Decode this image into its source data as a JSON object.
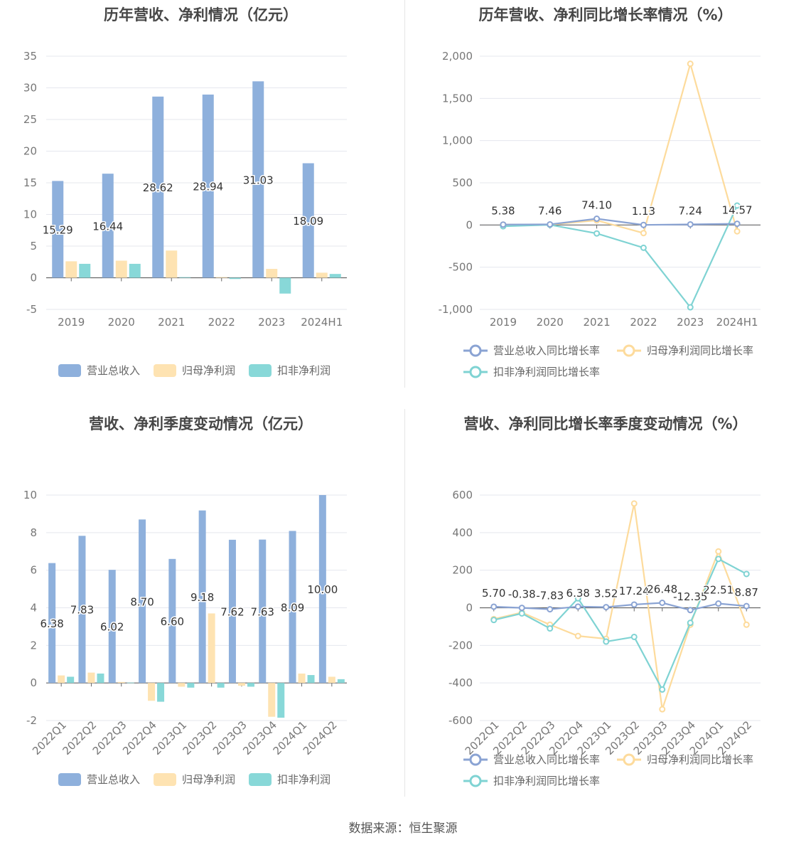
{
  "source_text": "数据来源：恒生聚源",
  "colors": {
    "revenue": "#8eb0dc",
    "net_profit": "#fee3b2",
    "deducted": "#88d8d8",
    "revenue_line": "#8aa3d3",
    "net_profit_line": "#fddb9c",
    "deducted_line": "#7fd3d3",
    "grid": "#e5e7ee",
    "axis_text": "#777777",
    "label_text": "#333333"
  },
  "legend_bar": [
    "营业总收入",
    "归母净利润",
    "扣非净利润"
  ],
  "legend_line": [
    "营业总收入同比增长率",
    "归母净利润同比增长率",
    "扣非净利润同比增长率"
  ],
  "chart_data": [
    {
      "type": "bar",
      "title": "历年营收、净利情况（亿元）",
      "categories": [
        "2019",
        "2020",
        "2021",
        "2022",
        "2023",
        "2024H1"
      ],
      "series": [
        {
          "name": "营业总收入",
          "values": [
            15.29,
            16.44,
            28.62,
            28.94,
            31.03,
            18.09
          ]
        },
        {
          "name": "归母净利润",
          "values": [
            2.6,
            2.7,
            4.3,
            0.1,
            1.4,
            0.8
          ]
        },
        {
          "name": "扣非净利润",
          "values": [
            2.2,
            2.2,
            0.1,
            -0.2,
            -2.5,
            0.6
          ]
        }
      ],
      "data_labels": [
        "15.29",
        "16.44",
        "28.62",
        "28.94",
        "31.03",
        "18.09"
      ],
      "ylim": [
        -5,
        35
      ],
      "yticks": [
        "-5",
        "0",
        "5",
        "10",
        "15",
        "20",
        "25",
        "30",
        "35"
      ],
      "grid": true,
      "legend_position": "bottom"
    },
    {
      "type": "line",
      "title": "历年营收、净利同比增长率情况（%）",
      "categories": [
        "2019",
        "2020",
        "2021",
        "2022",
        "2023",
        "2024H1"
      ],
      "series": [
        {
          "name": "营业总收入同比增长率",
          "values": [
            5.38,
            7.46,
            74.1,
            1.13,
            7.24,
            14.57
          ]
        },
        {
          "name": "归母净利润同比增长率",
          "values": [
            5,
            5,
            55,
            -96,
            1910,
            -75
          ]
        },
        {
          "name": "扣非净利润同比增长率",
          "values": [
            -15,
            2,
            -100,
            -270,
            -975,
            230
          ]
        }
      ],
      "data_labels": [
        "5.38",
        "7.46",
        "74.10",
        "1.13",
        "7.24",
        "14.57"
      ],
      "ylim": [
        -1000,
        2000
      ],
      "yticks": [
        "-1,000",
        "-500",
        "0",
        "500",
        "1,000",
        "1,500",
        "2,000"
      ],
      "grid": true,
      "legend_position": "bottom"
    },
    {
      "type": "bar",
      "title": "营收、净利季度变动情况（亿元）",
      "categories": [
        "2022Q1",
        "2022Q2",
        "2022Q3",
        "2022Q4",
        "2023Q1",
        "2023Q2",
        "2023Q3",
        "2023Q4",
        "2024Q1",
        "2024Q2"
      ],
      "series": [
        {
          "name": "营业总收入",
          "values": [
            6.38,
            7.83,
            6.02,
            8.7,
            6.6,
            9.18,
            7.62,
            7.63,
            8.09,
            10.0
          ]
        },
        {
          "name": "归母净利润",
          "values": [
            0.4,
            0.55,
            0.05,
            -0.95,
            -0.2,
            3.7,
            -0.15,
            -1.8,
            0.5,
            0.33
          ]
        },
        {
          "name": "扣非净利润",
          "values": [
            0.33,
            0.5,
            0.02,
            -1.0,
            -0.25,
            -0.25,
            -0.2,
            -1.85,
            0.42,
            0.2
          ]
        }
      ],
      "data_labels": [
        "6.38",
        "7.83",
        "6.02",
        "8.70",
        "6.60",
        "9.18",
        "7.62",
        "7.63",
        "8.09",
        "10.00"
      ],
      "ylim": [
        -2,
        10
      ],
      "yticks": [
        "-2",
        "0",
        "2",
        "4",
        "6",
        "8",
        "10"
      ],
      "grid": true,
      "legend_position": "bottom"
    },
    {
      "type": "line",
      "title": "营收、净利同比增长率季度变动情况（%）",
      "categories": [
        "2022Q1",
        "2022Q2",
        "2022Q3",
        "2022Q4",
        "2023Q1",
        "2023Q2",
        "2023Q3",
        "2023Q4",
        "2024Q1",
        "2024Q2"
      ],
      "series": [
        {
          "name": "营业总收入同比增长率",
          "values": [
            5.7,
            -0.38,
            -7.83,
            6.38,
            3.52,
            17.24,
            26.48,
            -12.35,
            22.51,
            8.87
          ]
        },
        {
          "name": "归母净利润同比增长率",
          "values": [
            -60,
            -25,
            -90,
            -150,
            -165,
            555,
            -540,
            -90,
            300,
            -90
          ]
        },
        {
          "name": "扣非净利润同比增长率",
          "values": [
            -65,
            -30,
            -110,
            50,
            -180,
            -155,
            -435,
            -80,
            260,
            180
          ]
        }
      ],
      "data_labels": [
        "5.70",
        "-0.38",
        "-7.83",
        "6.38",
        "3.52",
        "17.24",
        "26.48",
        "-12.35",
        "22.51",
        "8.87"
      ],
      "ylim": [
        -600,
        600
      ],
      "yticks": [
        "-600",
        "-400",
        "-200",
        "0",
        "200",
        "400",
        "600"
      ],
      "grid": true,
      "legend_position": "bottom"
    }
  ]
}
